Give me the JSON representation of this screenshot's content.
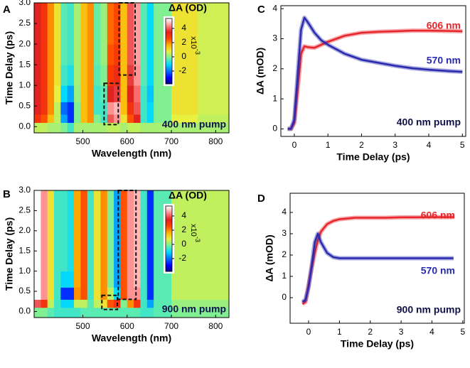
{
  "chart_data": [
    {
      "type": "heatmap",
      "panel": "A",
      "xlabel": "Wavelength (nm)",
      "ylabel": "Time Delay (ps)",
      "annotation": "400 nm pump",
      "colorbar_label": "ΔA (OD)",
      "colorbar_scale": "x10",
      "colorbar_exponent": "-3",
      "xbins": [
        390,
        405,
        420,
        435,
        450,
        465,
        480,
        495,
        510,
        525,
        540,
        555,
        570,
        585,
        600,
        615,
        630,
        645,
        660,
        700,
        760,
        830
      ],
      "ybins": [
        -0.15,
        0.1,
        0.3,
        0.6,
        1.0,
        1.5,
        2.0,
        2.5,
        3.0
      ],
      "z": [
        [
          0.5,
          0.5,
          0.3,
          0.3,
          0,
          -0.5,
          0.3,
          0.3,
          0.3,
          0.3,
          0.3,
          0.5,
          0.5,
          0.3,
          0.5,
          0.5,
          0.3,
          0.3,
          0.3,
          0.3,
          0.3
        ],
        [
          3,
          2.5,
          1.5,
          0.5,
          -1.5,
          -2.5,
          0,
          1.5,
          2,
          0,
          -0.5,
          4,
          4.5,
          1,
          2.5,
          3.5,
          -0.5,
          -1,
          0,
          0.8,
          0.5
        ],
        [
          3.5,
          3,
          2,
          0.5,
          -2,
          -2.5,
          0,
          1.5,
          2,
          -0.5,
          -0.5,
          4.5,
          4.8,
          1.5,
          3,
          4,
          -0.5,
          -1,
          0,
          1,
          0.6
        ],
        [
          3.5,
          3,
          2,
          0.8,
          -1,
          -1.5,
          0.2,
          1.5,
          2,
          -0.5,
          -0.3,
          3.5,
          3.8,
          1.5,
          3.5,
          4.2,
          -0.5,
          -1.2,
          0,
          1,
          0.6
        ],
        [
          3.5,
          3,
          2,
          1,
          -0.5,
          -0.8,
          0.3,
          1.5,
          2,
          -0.3,
          0,
          2.8,
          3.2,
          1.5,
          3.8,
          4.5,
          -0.3,
          -1,
          0,
          1,
          0.6
        ],
        [
          3.5,
          3,
          2,
          1,
          -0.3,
          -0.5,
          0.3,
          1.5,
          2,
          -0.2,
          0.2,
          2.5,
          2.8,
          1.5,
          4,
          4.6,
          -0.3,
          -1,
          0,
          1,
          0.6
        ],
        [
          3.5,
          3,
          2,
          1,
          -0.3,
          -0.5,
          0.3,
          1.5,
          2,
          -0.2,
          0.2,
          2.3,
          2.6,
          1.5,
          4,
          4.6,
          -0.3,
          -1,
          0,
          1,
          0.6
        ],
        [
          3.5,
          3,
          2,
          1,
          -0.3,
          -0.5,
          0.3,
          1.5,
          2,
          -0.2,
          0.2,
          2.3,
          2.6,
          1.5,
          4,
          4.6,
          -0.3,
          -1,
          0,
          1,
          0.6
        ]
      ],
      "xlim": [
        390,
        830
      ],
      "ylim": [
        -0.15,
        3.0
      ],
      "xticks": [
        500,
        600,
        700,
        800
      ],
      "yticks": [
        {
          "value": 0,
          "label": "0.0"
        },
        0.5,
        {
          "value": 1,
          "label": "1.0"
        },
        1.5,
        {
          "value": 2,
          "label": "2.0"
        },
        2.5,
        {
          "value": 3,
          "label": "3.0"
        }
      ],
      "zlim": [
        -3.8,
        5.4
      ],
      "zticks": [
        -2,
        0,
        2,
        4
      ],
      "colormap": [
        "#00007f",
        "#0000ff",
        "#0070ff",
        "#00d8ff",
        "#70f0a0",
        "#e8f040",
        "#ffb000",
        "#ff4000",
        "#e02020",
        "#ff9090",
        "#ffffff"
      ],
      "regions": [
        {
          "x": [
            548,
            580
          ],
          "y": [
            0.05,
            1.05
          ]
        },
        {
          "x": [
            582,
            618
          ],
          "y": [
            1.25,
            3.0
          ]
        }
      ]
    },
    {
      "type": "heatmap",
      "panel": "B",
      "xlabel": "Wavelength (nm)",
      "ylabel": "Time Delay (ps)",
      "annotation": "900 nm pump",
      "colorbar_label": "ΔA (OD)",
      "colorbar_scale": "x10",
      "colorbar_exponent": "-3",
      "xbins": [
        390,
        405,
        420,
        435,
        450,
        465,
        480,
        495,
        510,
        525,
        540,
        555,
        570,
        585,
        600,
        615,
        630,
        645,
        660,
        700,
        760,
        830
      ],
      "ybins": [
        -0.15,
        0.1,
        0.3,
        0.6,
        1.0,
        1.5,
        2.0,
        2.5,
        3.0
      ],
      "z": [
        [
          0,
          0,
          -0.3,
          -0.5,
          -0.5,
          -0.5,
          -0.5,
          -0.3,
          -0.3,
          -0.3,
          -0.3,
          -0.3,
          -0.3,
          -0.3,
          -0.3,
          -0.3,
          -0.5,
          -0.5,
          -0.3,
          0,
          0
        ],
        [
          4,
          3,
          0.5,
          -0.5,
          -1,
          -1,
          0.5,
          0.5,
          -0.3,
          0.5,
          1,
          2.5,
          3,
          0,
          2,
          3,
          -0.5,
          -1.5,
          -0.3,
          0.2,
          0.2
        ],
        [
          5.5,
          4.5,
          1,
          -0.5,
          -2.5,
          -2.5,
          2,
          2.5,
          -0.5,
          1,
          2,
          0.5,
          -1,
          2.5,
          4.5,
          4.5,
          -0.5,
          -2.5,
          -0.3,
          0.5,
          0.5
        ],
        [
          5.5,
          4.5,
          1,
          -0.5,
          -1,
          -1,
          1.8,
          2.5,
          -0.5,
          1,
          2,
          0,
          -1.5,
          2.5,
          4.5,
          4.8,
          -0.5,
          -2.5,
          -0.3,
          0.5,
          0.5
        ],
        [
          5.5,
          4.5,
          1,
          -0.5,
          -0.5,
          -0.8,
          1.8,
          2.5,
          -0.5,
          1,
          2,
          0,
          -1.5,
          2.5,
          4.5,
          4.8,
          -0.5,
          -2.5,
          -0.3,
          0.5,
          0.5
        ],
        [
          5.5,
          4.5,
          1,
          -0.5,
          -0.5,
          -0.8,
          1.8,
          2.5,
          -0.5,
          1,
          2,
          0,
          -1.5,
          2.5,
          4.5,
          4.8,
          -0.5,
          -2.5,
          -0.3,
          0.5,
          0.5
        ],
        [
          5.5,
          4.5,
          1,
          -0.5,
          -0.5,
          -0.8,
          1.8,
          2.5,
          -0.5,
          1,
          2,
          0,
          -1.5,
          2.5,
          4.5,
          4.8,
          -0.5,
          -2.5,
          -0.3,
          0.5,
          0.5
        ],
        [
          5.5,
          4.5,
          1,
          -0.5,
          -0.5,
          -0.8,
          1.8,
          2.5,
          -0.5,
          1,
          2,
          0,
          -1.5,
          2.5,
          4.5,
          4.8,
          -0.5,
          -2.5,
          -0.3,
          0.5,
          0.5
        ]
      ],
      "xlim": [
        390,
        830
      ],
      "ylim": [
        -0.15,
        3.0
      ],
      "xticks": [
        500,
        600,
        700,
        800
      ],
      "yticks": [
        {
          "value": 0,
          "label": "0.0"
        },
        0.5,
        {
          "value": 1,
          "label": "1.0"
        },
        1.5,
        {
          "value": 2,
          "label": "2.0"
        },
        2.5,
        {
          "value": 3,
          "label": "3.0"
        }
      ],
      "zlim": [
        -3.8,
        5.4
      ],
      "zticks": [
        -2,
        0,
        2,
        4
      ],
      "colormap": [
        "#00007f",
        "#0000ff",
        "#0070ff",
        "#00d8ff",
        "#70f0a0",
        "#e8f040",
        "#ffb000",
        "#ff4000",
        "#e02020",
        "#ff9090",
        "#ffffff"
      ],
      "regions": [
        {
          "x": [
            543,
            578
          ],
          "y": [
            0.05,
            0.4
          ]
        },
        {
          "x": [
            580,
            620
          ],
          "y": [
            0.3,
            3.0
          ]
        }
      ]
    },
    {
      "type": "line",
      "panel": "C",
      "xlabel": "Time Delay (ps)",
      "ylabel": "ΔA (mOD)",
      "annotation": "400 nm pump",
      "x": [
        -0.2,
        -0.1,
        0,
        0.1,
        0.2,
        0.3,
        0.4,
        0.6,
        0.8,
        1,
        1.5,
        2,
        2.5,
        3,
        3.5,
        4,
        4.5,
        5
      ],
      "series": [
        {
          "name": "606 nm",
          "color": "#e8252a",
          "values": [
            0,
            0,
            0.2,
            1.3,
            2.5,
            2.75,
            2.72,
            2.7,
            2.8,
            2.9,
            3.1,
            3.2,
            3.23,
            3.25,
            3.27,
            3.27,
            3.26,
            3.25
          ]
        },
        {
          "name": "570 nm",
          "color": "#2a2ab0",
          "values": [
            0,
            0,
            0.3,
            1.8,
            3.3,
            3.7,
            3.55,
            3.2,
            2.95,
            2.8,
            2.5,
            2.3,
            2.2,
            2.1,
            2.02,
            1.97,
            1.93,
            1.9
          ]
        }
      ],
      "xlim": [
        -0.4,
        5.1
      ],
      "ylim": [
        -0.25,
        4.1
      ],
      "xticks": [
        0,
        1,
        2,
        3,
        4,
        5
      ],
      "yticks": [
        0,
        1,
        2,
        3,
        4
      ]
    },
    {
      "type": "line",
      "panel": "D",
      "xlabel": "Time Delay (ps)",
      "ylabel": "ΔA (mOD)",
      "annotation": "900 nm pump",
      "x": [
        -0.2,
        -0.1,
        0,
        0.1,
        0.2,
        0.3,
        0.4,
        0.6,
        0.8,
        1,
        1.5,
        2,
        2.5,
        3,
        3.5,
        4,
        4.5,
        4.7
      ],
      "series": [
        {
          "name": "606 nm",
          "color": "#e8252a",
          "values": [
            -0.3,
            -0.2,
            0.6,
            1.4,
            2.1,
            2.7,
            3.1,
            3.45,
            3.6,
            3.68,
            3.75,
            3.75,
            3.75,
            3.77,
            3.77,
            3.78,
            3.78,
            3.78
          ]
        },
        {
          "name": "570 nm",
          "color": "#2a2ab0",
          "values": [
            -0.2,
            -0.1,
            0.5,
            1.5,
            2.6,
            3.0,
            2.6,
            2.1,
            1.9,
            1.85,
            1.85,
            1.85,
            1.85,
            1.85,
            1.85,
            1.85,
            1.85,
            1.85
          ]
        }
      ],
      "xlim": [
        -0.6,
        5.05
      ],
      "ylim": [
        -1.2,
        4.9
      ],
      "xticks": [
        0,
        1,
        2,
        3,
        4,
        5
      ],
      "yticks": [
        0,
        1,
        2,
        3,
        4
      ]
    }
  ]
}
